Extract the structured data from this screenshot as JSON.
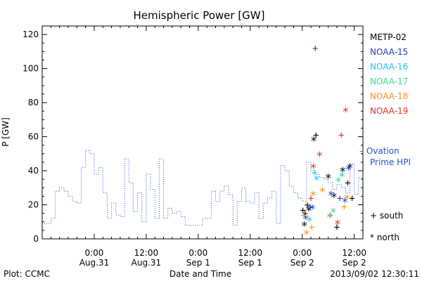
{
  "chart_data": {
    "type": "line",
    "title": "Hemispheric Power [GW]",
    "ylabel": "P [GW]",
    "xlabel": "Date and Time",
    "ylim": [
      0,
      125
    ],
    "xlim": [
      "2013-08-30 12:00",
      "2013-09-02 14:00"
    ],
    "y_ticks": [
      0,
      20,
      40,
      60,
      80,
      100,
      120
    ],
    "x_tick_labels": [
      {
        "time": "0:00",
        "date": "Aug.31"
      },
      {
        "time": "12:00",
        "date": "Aug.31"
      },
      {
        "time": "0:00",
        "date": "Sep 1"
      },
      {
        "time": "12:00",
        "date": "Sep 1"
      },
      {
        "time": "0:00",
        "date": "Sep 2"
      },
      {
        "time": "12:00",
        "date": "Sep 2"
      }
    ],
    "ovation_series": {
      "name": "Ovation Prime HPI",
      "color": "#2255cc",
      "points": [
        [
          "2013-08-30 12:00",
          9
        ],
        [
          "2013-08-30 13:00",
          9
        ],
        [
          "2013-08-30 14:00",
          12
        ],
        [
          "2013-08-30 15:00",
          28
        ],
        [
          "2013-08-30 16:00",
          30
        ],
        [
          "2013-08-30 17:00",
          28
        ],
        [
          "2013-08-30 18:00",
          25
        ],
        [
          "2013-08-30 19:00",
          22
        ],
        [
          "2013-08-30 20:00",
          21
        ],
        [
          "2013-08-30 21:00",
          42
        ],
        [
          "2013-08-30 22:00",
          52
        ],
        [
          "2013-08-30 23:00",
          50
        ],
        [
          "2013-08-31 00:00",
          38
        ],
        [
          "2013-08-31 01:00",
          42
        ],
        [
          "2013-08-31 02:00",
          27
        ],
        [
          "2013-08-31 03:00",
          12
        ],
        [
          "2013-08-31 04:00",
          21
        ],
        [
          "2013-08-31 05:00",
          14
        ],
        [
          "2013-08-31 06:00",
          13
        ],
        [
          "2013-08-31 07:00",
          47
        ],
        [
          "2013-08-31 08:00",
          33
        ],
        [
          "2013-08-31 09:00",
          16
        ],
        [
          "2013-08-31 10:00",
          27
        ],
        [
          "2013-08-31 11:00",
          10
        ],
        [
          "2013-08-31 12:00",
          38
        ],
        [
          "2013-08-31 13:00",
          29
        ],
        [
          "2013-08-31 14:00",
          12
        ],
        [
          "2013-08-31 15:00",
          47
        ],
        [
          "2013-08-31 16:00",
          12
        ],
        [
          "2013-08-31 17:00",
          18
        ],
        [
          "2013-08-31 18:00",
          15
        ],
        [
          "2013-08-31 19:00",
          16
        ],
        [
          "2013-08-31 20:00",
          13
        ],
        [
          "2013-08-31 21:00",
          8
        ],
        [
          "2013-08-31 22:00",
          8
        ],
        [
          "2013-08-31 23:00",
          8
        ],
        [
          "2013-09-01 00:00",
          8
        ],
        [
          "2013-09-01 01:00",
          12
        ],
        [
          "2013-09-01 02:00",
          12
        ],
        [
          "2013-09-01 03:00",
          28
        ],
        [
          "2013-09-01 04:00",
          22
        ],
        [
          "2013-09-01 05:00",
          28
        ],
        [
          "2013-09-01 06:00",
          31
        ],
        [
          "2013-09-01 07:00",
          26
        ],
        [
          "2013-09-01 08:00",
          8
        ],
        [
          "2013-09-01 09:00",
          22
        ],
        [
          "2013-09-01 10:00",
          30
        ],
        [
          "2013-09-01 11:00",
          22
        ],
        [
          "2013-09-01 12:00",
          21
        ],
        [
          "2013-09-01 13:00",
          27
        ],
        [
          "2013-09-01 14:00",
          12
        ],
        [
          "2013-09-01 15:00",
          21
        ],
        [
          "2013-09-01 16:00",
          24
        ],
        [
          "2013-09-01 17:00",
          28
        ],
        [
          "2013-09-01 18:00",
          9
        ],
        [
          "2013-09-01 19:00",
          43
        ],
        [
          "2013-09-01 20:00",
          40
        ],
        [
          "2013-09-01 21:00",
          31
        ],
        [
          "2013-09-01 22:00",
          27
        ],
        [
          "2013-09-01 23:00",
          24
        ],
        [
          "2013-09-02 00:00",
          22
        ],
        [
          "2013-09-02 01:00",
          45
        ],
        [
          "2013-09-02 02:00",
          40
        ],
        [
          "2013-09-02 03:00",
          38
        ],
        [
          "2013-09-02 04:00",
          36
        ],
        [
          "2013-09-02 05:00",
          35
        ],
        [
          "2013-09-02 06:00",
          33
        ],
        [
          "2013-09-02 07:00",
          29
        ],
        [
          "2013-09-02 08:00",
          32
        ],
        [
          "2013-09-02 09:00",
          30
        ],
        [
          "2013-09-02 10:00",
          27
        ],
        [
          "2013-09-02 11:00",
          44
        ],
        [
          "2013-09-02 12:00",
          26
        ],
        [
          "2013-09-02 13:00",
          36
        ],
        [
          "2013-09-02 14:00",
          38
        ]
      ]
    },
    "satellites": [
      {
        "name": "METP-02",
        "color": "#000000"
      },
      {
        "name": "NOAA-15",
        "color": "#1f3fbf"
      },
      {
        "name": "NOAA-16",
        "color": "#22c1ee"
      },
      {
        "name": "NOAA-17",
        "color": "#33dd88"
      },
      {
        "name": "NOAA-18",
        "color": "#ff8c1a"
      },
      {
        "name": "NOAA-19",
        "color": "#e0321e"
      }
    ],
    "markers": [
      {
        "time": "2013-09-02 00:10",
        "value": 17,
        "sat": 0,
        "hemi": "south"
      },
      {
        "time": "2013-09-02 00:40",
        "value": 15,
        "sat": 0,
        "hemi": "south"
      },
      {
        "time": "2013-09-02 01:10",
        "value": 20,
        "sat": 0,
        "hemi": "south"
      },
      {
        "time": "2013-09-02 03:10",
        "value": 61,
        "sat": 0,
        "hemi": "south"
      },
      {
        "time": "2013-09-02 08:00",
        "value": 7,
        "sat": 0,
        "hemi": "south"
      },
      {
        "time": "2013-09-02 10:30",
        "value": 33,
        "sat": 0,
        "hemi": "south"
      },
      {
        "time": "2013-09-02 11:30",
        "value": 24,
        "sat": 0,
        "hemi": "south"
      },
      {
        "time": "2013-09-02 00:30",
        "value": 8,
        "sat": 0,
        "hemi": "north"
      },
      {
        "time": "2013-09-02 01:30",
        "value": 17,
        "sat": 0,
        "hemi": "north"
      },
      {
        "time": "2013-09-02 02:40",
        "value": 58,
        "sat": 0,
        "hemi": "north"
      },
      {
        "time": "2013-09-02 06:00",
        "value": 36,
        "sat": 0,
        "hemi": "north"
      },
      {
        "time": "2013-09-02 07:20",
        "value": 25,
        "sat": 0,
        "hemi": "north"
      },
      {
        "time": "2013-09-02 09:20",
        "value": 40,
        "sat": 0,
        "hemi": "north"
      },
      {
        "time": "2013-09-02 11:00",
        "value": 42,
        "sat": 0,
        "hemi": "north"
      },
      {
        "time": "2013-09-02 01:50",
        "value": 19,
        "sat": 1,
        "hemi": "south"
      },
      {
        "time": "2013-09-02 03:00",
        "value": 112,
        "sat": 1,
        "hemi": "south"
      },
      {
        "time": "2013-09-02 08:40",
        "value": 24,
        "sat": 1,
        "hemi": "south"
      },
      {
        "time": "2013-09-02 00:50",
        "value": 12,
        "sat": 1,
        "hemi": "north"
      },
      {
        "time": "2013-09-02 02:20",
        "value": 18,
        "sat": 1,
        "hemi": "north"
      },
      {
        "time": "2013-09-02 06:40",
        "value": 26,
        "sat": 1,
        "hemi": "north"
      },
      {
        "time": "2013-09-02 09:50",
        "value": 22,
        "sat": 1,
        "hemi": "north"
      },
      {
        "time": "2013-09-02 10:40",
        "value": 41,
        "sat": 1,
        "hemi": "north"
      },
      {
        "time": "2013-09-02 02:50",
        "value": 39,
        "sat": 2,
        "hemi": "south"
      },
      {
        "time": "2013-09-02 06:30",
        "value": 14,
        "sat": 2,
        "hemi": "south"
      },
      {
        "time": "2013-09-02 01:40",
        "value": 11,
        "sat": 2,
        "hemi": "north"
      },
      {
        "time": "2013-09-02 03:20",
        "value": 35,
        "sat": 2,
        "hemi": "north"
      },
      {
        "time": "2013-09-02 09:10",
        "value": 37,
        "sat": 2,
        "hemi": "north"
      },
      {
        "time": "2013-09-02 07:10",
        "value": 16,
        "sat": 3,
        "hemi": "north"
      },
      {
        "time": "2013-09-02 08:20",
        "value": 34,
        "sat": 3,
        "hemi": "north"
      },
      {
        "time": "2013-09-02 00:20",
        "value": 14,
        "sat": 4,
        "hemi": "south"
      },
      {
        "time": "2013-09-02 02:10",
        "value": 7,
        "sat": 4,
        "hemi": "south"
      },
      {
        "time": "2013-09-02 09:40",
        "value": 19,
        "sat": 4,
        "hemi": "south"
      },
      {
        "time": "2013-09-02 01:00",
        "value": 3,
        "sat": 4,
        "hemi": "north"
      },
      {
        "time": "2013-09-02 02:30",
        "value": 26,
        "sat": 4,
        "hemi": "north"
      },
      {
        "time": "2013-09-02 04:40",
        "value": 28,
        "sat": 4,
        "hemi": "north"
      },
      {
        "time": "2013-09-02 06:20",
        "value": 13,
        "sat": 4,
        "hemi": "north"
      },
      {
        "time": "2013-09-02 10:20",
        "value": 24,
        "sat": 4,
        "hemi": "north"
      },
      {
        "time": "2013-09-02 02:00",
        "value": 24,
        "sat": 5,
        "hemi": "south"
      },
      {
        "time": "2013-09-02 09:00",
        "value": 61,
        "sat": 5,
        "hemi": "south"
      },
      {
        "time": "2013-09-02 02:35",
        "value": 42,
        "sat": 5,
        "hemi": "north"
      },
      {
        "time": "2013-09-02 04:00",
        "value": 49,
        "sat": 5,
        "hemi": "north"
      },
      {
        "time": "2013-09-02 08:10",
        "value": 9,
        "sat": 5,
        "hemi": "north"
      },
      {
        "time": "2013-09-02 10:00",
        "value": 75,
        "sat": 5,
        "hemi": "north"
      }
    ],
    "symbol_legend": [
      {
        "symbol": "+",
        "label": "south"
      },
      {
        "symbol": "*",
        "label": "north"
      }
    ]
  },
  "footer": {
    "left": "Plot: CCMC",
    "right": "2013/09/02 12:30:11"
  }
}
